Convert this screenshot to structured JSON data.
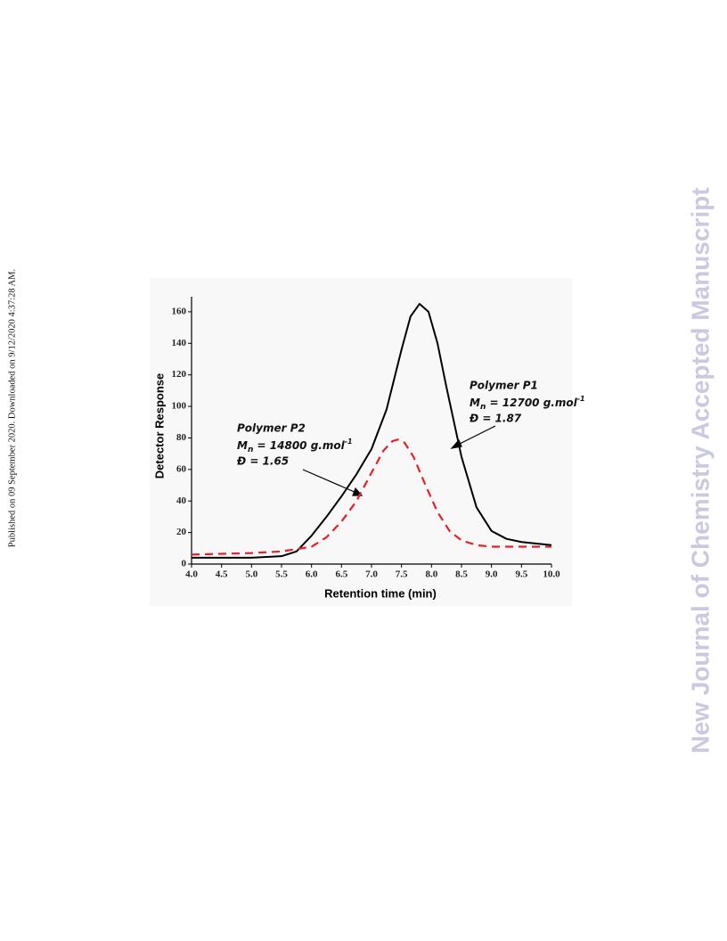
{
  "side_note": "Published on 09 September 2020. Downloaded on 9/12/2020 4:37:28 AM.",
  "watermark": "New Journal of Chemistry Accepted Manuscript",
  "chart_data": {
    "type": "line",
    "xlabel": "Retention time (min)",
    "ylabel": "Detector Response",
    "xlim": [
      4,
      10
    ],
    "ylim": [
      0,
      170
    ],
    "xticks": [
      {
        "value": 4,
        "label": "4.0"
      },
      4.5,
      {
        "value": 5,
        "label": "5.0"
      },
      5.5,
      {
        "value": 6,
        "label": "6.0"
      },
      6.5,
      {
        "value": 7,
        "label": "7.0"
      },
      7.5,
      {
        "value": 8,
        "label": "8.0"
      },
      8.5,
      {
        "value": 9,
        "label": "9.0"
      },
      9.5,
      {
        "value": 10,
        "label": "10.0"
      }
    ],
    "yticks": [
      0,
      20,
      40,
      60,
      80,
      100,
      120,
      140,
      160
    ],
    "series": [
      {
        "color": "#000000",
        "dash": false,
        "x": [
          4.0,
          5.0,
          5.5,
          5.75,
          6.0,
          6.25,
          6.5,
          6.75,
          7.0,
          7.25,
          7.5,
          7.65,
          7.8,
          7.95,
          8.1,
          8.25,
          8.5,
          8.75,
          9.0,
          9.25,
          9.5,
          10.0
        ],
        "values": [
          4,
          4,
          5,
          8,
          18,
          30,
          43,
          57,
          73,
          98,
          136,
          157,
          165,
          160,
          140,
          112,
          68,
          36,
          21,
          16,
          14,
          12
        ]
      },
      {
        "color": "#e8202a",
        "dash": true,
        "x": [
          4.0,
          5.0,
          5.5,
          6.0,
          6.25,
          6.5,
          6.75,
          7.0,
          7.2,
          7.35,
          7.45,
          7.55,
          7.7,
          7.9,
          8.1,
          8.3,
          8.5,
          8.75,
          9.0,
          10.0
        ],
        "values": [
          6,
          7,
          8,
          11,
          17,
          27,
          40,
          58,
          72,
          78,
          79,
          77,
          68,
          50,
          33,
          21,
          15,
          12,
          11,
          11
        ]
      }
    ],
    "annotations": [
      {
        "title": "Polymer P1",
        "m": "M",
        "sub": "n",
        "mass": " = 12700 g.mol",
        "sup": "-1",
        "dispersity": "Đ = 1.87"
      },
      {
        "title": "Polymer P2",
        "m": "M",
        "sub": "n",
        "mass": " = 14800 g.mol",
        "sup": "-1",
        "dispersity": "Đ = 1.65"
      }
    ]
  }
}
